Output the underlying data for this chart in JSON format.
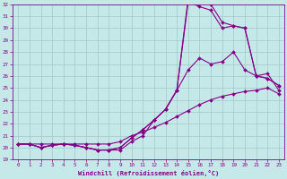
{
  "background_color": "#c5e8e8",
  "grid_color": "#a0c8c8",
  "line_color": "#880088",
  "marker_color": "#880088",
  "xlim": [
    -0.5,
    23.5
  ],
  "ylim": [
    19,
    32
  ],
  "xlabel": "Windchill (Refroidissement éolien,°C)",
  "series": [
    {
      "x": [
        0,
        1,
        2,
        3,
        4,
        5,
        6,
        7,
        8,
        9,
        10,
        11,
        12,
        13,
        14,
        15,
        16,
        17,
        18,
        19,
        20,
        21,
        22,
        23
      ],
      "y": [
        20.3,
        20.3,
        20.3,
        20.3,
        20.3,
        20.3,
        20.3,
        20.3,
        20.3,
        20.5,
        21.0,
        21.3,
        21.7,
        22.1,
        22.6,
        23.1,
        23.6,
        24.0,
        24.3,
        24.5,
        24.7,
        24.8,
        25.0,
        24.5
      ]
    },
    {
      "x": [
        0,
        1,
        2,
        3,
        4,
        5,
        6,
        7,
        8,
        9,
        10,
        11,
        12,
        13,
        14,
        15,
        16,
        17,
        18,
        19,
        20,
        21,
        22,
        23
      ],
      "y": [
        20.3,
        20.3,
        20.0,
        20.2,
        20.3,
        20.2,
        20.0,
        19.8,
        19.8,
        19.8,
        20.5,
        21.0,
        22.3,
        23.2,
        24.8,
        26.5,
        27.5,
        27.0,
        27.2,
        28.0,
        26.5,
        26.0,
        26.2,
        24.8
      ]
    },
    {
      "x": [
        0,
        1,
        2,
        3,
        4,
        5,
        6,
        7,
        8,
        9,
        10,
        11,
        12,
        13,
        14,
        15,
        16,
        17,
        18,
        19,
        20,
        21,
        22,
        23
      ],
      "y": [
        20.3,
        20.3,
        20.0,
        20.2,
        20.3,
        20.2,
        20.0,
        19.8,
        19.8,
        20.0,
        20.8,
        21.5,
        22.3,
        23.2,
        24.8,
        32.2,
        31.8,
        31.5,
        30.0,
        30.2,
        30.0,
        26.0,
        25.8,
        25.2
      ]
    },
    {
      "x": [
        0,
        1,
        2,
        3,
        4,
        5,
        6,
        7,
        8,
        9,
        10,
        11,
        12,
        13,
        14,
        15,
        16,
        17,
        18,
        19,
        20,
        21,
        22,
        23
      ],
      "y": [
        20.3,
        20.3,
        20.0,
        20.2,
        20.3,
        20.2,
        20.0,
        19.8,
        19.8,
        20.0,
        20.8,
        21.5,
        22.3,
        23.2,
        24.8,
        32.5,
        32.2,
        32.0,
        30.5,
        30.2,
        30.0,
        26.0,
        25.8,
        25.2
      ]
    }
  ]
}
